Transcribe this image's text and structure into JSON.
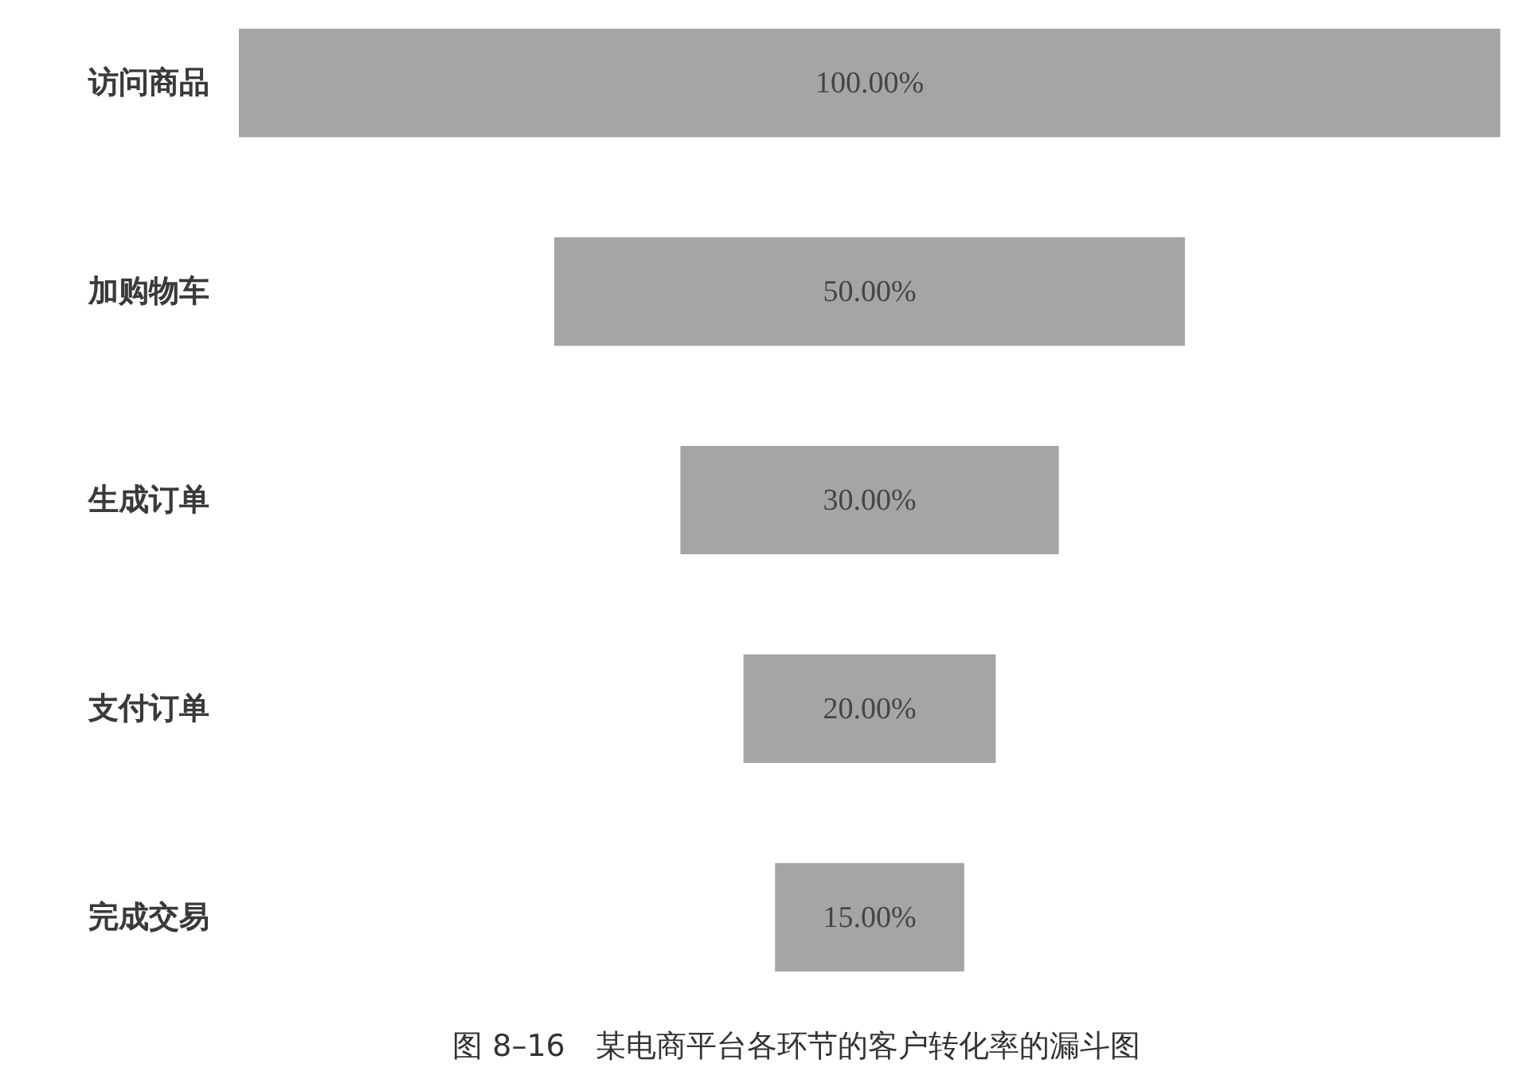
{
  "chart_data": {
    "type": "other",
    "categories": [
      "访问商品",
      "加购物车",
      "生成订单",
      "支付订单",
      "完成交易"
    ],
    "values": [
      100,
      50,
      30,
      20,
      15
    ],
    "value_labels": [
      "100.00%",
      "50.00%",
      "30.00%",
      "20.00%",
      "15.00%"
    ],
    "color": "#a5a5a8",
    "annotations": [
      "图 8–16　某电商平台各环节的客户转化率的漏斗图"
    ]
  }
}
